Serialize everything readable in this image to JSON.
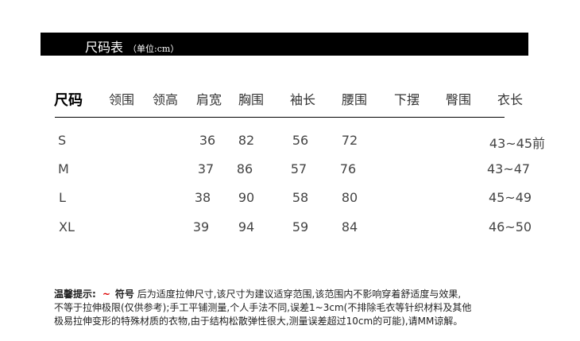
{
  "banner": {
    "title": "尺码表",
    "unit": "（单位:cm）"
  },
  "columns": [
    "尺码",
    "领围",
    "领高",
    "肩宽",
    "胸围",
    "袖长",
    "腰围",
    "下摆",
    "臀围",
    "衣长"
  ],
  "rows": [
    {
      "size": "S",
      "neck": "",
      "collar_height": "",
      "shoulder": "36",
      "chest": "82",
      "sleeve": "56",
      "waist": "72",
      "hem": "",
      "hip": "",
      "length": "43~45前"
    },
    {
      "size": "M",
      "neck": "",
      "collar_height": "",
      "shoulder": "37",
      "chest": "86",
      "sleeve": "57",
      "waist": "76",
      "hem": "",
      "hip": "",
      "length": "43~47"
    },
    {
      "size": "L",
      "neck": "",
      "collar_height": "",
      "shoulder": "38",
      "chest": "90",
      "sleeve": "58",
      "waist": "80",
      "hem": "",
      "hip": "",
      "length": "45~49"
    },
    {
      "size": "XL",
      "neck": "",
      "collar_height": "",
      "shoulder": "39",
      "chest": "94",
      "sleeve": "59",
      "waist": "84",
      "hem": "",
      "hip": "",
      "length": "46~50"
    }
  ],
  "note": {
    "label": "温馨提示:",
    "tilde": "~",
    "symbol": "符号",
    "line1": "后为适度拉伸尺寸,该尺寸为建议适穿范围,该范围内不影响穿着舒适度与效果,",
    "line2": "不等于拉伸极限(仅供参考);手工平铺测量,个人手法不同,误差1~3cm(不排除毛衣等针织材料及其他",
    "line3": "极易拉伸变形的特殊材质的衣物,由于结构松散弹性很大,测量误差超过10cm的可能),请MM谅解。",
    "accent_color": "#dd0000"
  }
}
